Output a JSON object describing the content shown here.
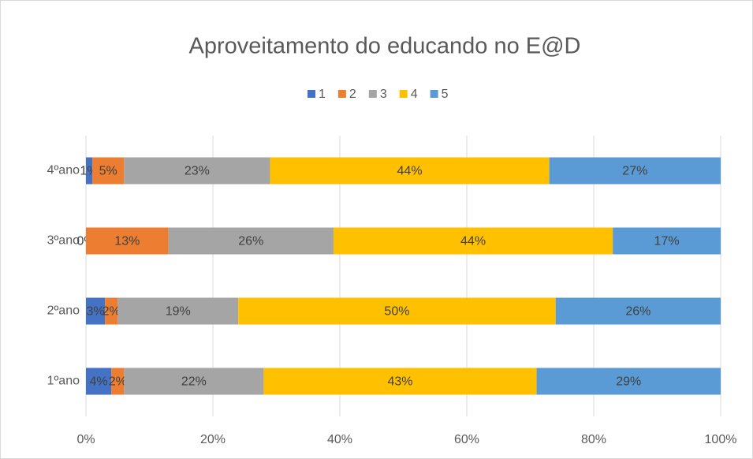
{
  "chart_data": {
    "type": "stacked_barh",
    "title": "Aproveitamento do educando no E@D",
    "categories": [
      "1ºano",
      "2ºano",
      "3ºano",
      "4ºano"
    ],
    "series": [
      {
        "name": "1",
        "color": "#4472c4",
        "values": [
          4,
          3,
          0,
          1
        ],
        "value_labels": [
          "4%",
          "3%",
          "0%",
          "1%"
        ]
      },
      {
        "name": "2",
        "color": "#ed7d31",
        "values": [
          2,
          2,
          13,
          5
        ],
        "value_labels": [
          "2%",
          "2%",
          "13%",
          "5%"
        ]
      },
      {
        "name": "3",
        "color": "#a5a5a5",
        "values": [
          22,
          19,
          26,
          23
        ],
        "value_labels": [
          "22%",
          "19%",
          "26%",
          "23%"
        ]
      },
      {
        "name": "4",
        "color": "#ffc000",
        "values": [
          43,
          50,
          44,
          44
        ],
        "value_labels": [
          "43%",
          "50%",
          "44%",
          "44%"
        ]
      },
      {
        "name": "5",
        "color": "#5b9bd5",
        "values": [
          29,
          26,
          17,
          27
        ],
        "value_labels": [
          "29%",
          "26%",
          "17%",
          "27%"
        ]
      }
    ],
    "xlim": [
      0,
      100
    ],
    "xticks": [
      {
        "value": 0,
        "label": "0%"
      },
      {
        "value": 20,
        "label": "20%"
      },
      {
        "value": 40,
        "label": "40%"
      },
      {
        "value": 60,
        "label": "60%"
      },
      {
        "value": 80,
        "label": "80%"
      },
      {
        "value": 100,
        "label": "100%"
      }
    ],
    "grid": true,
    "legend": "top"
  }
}
